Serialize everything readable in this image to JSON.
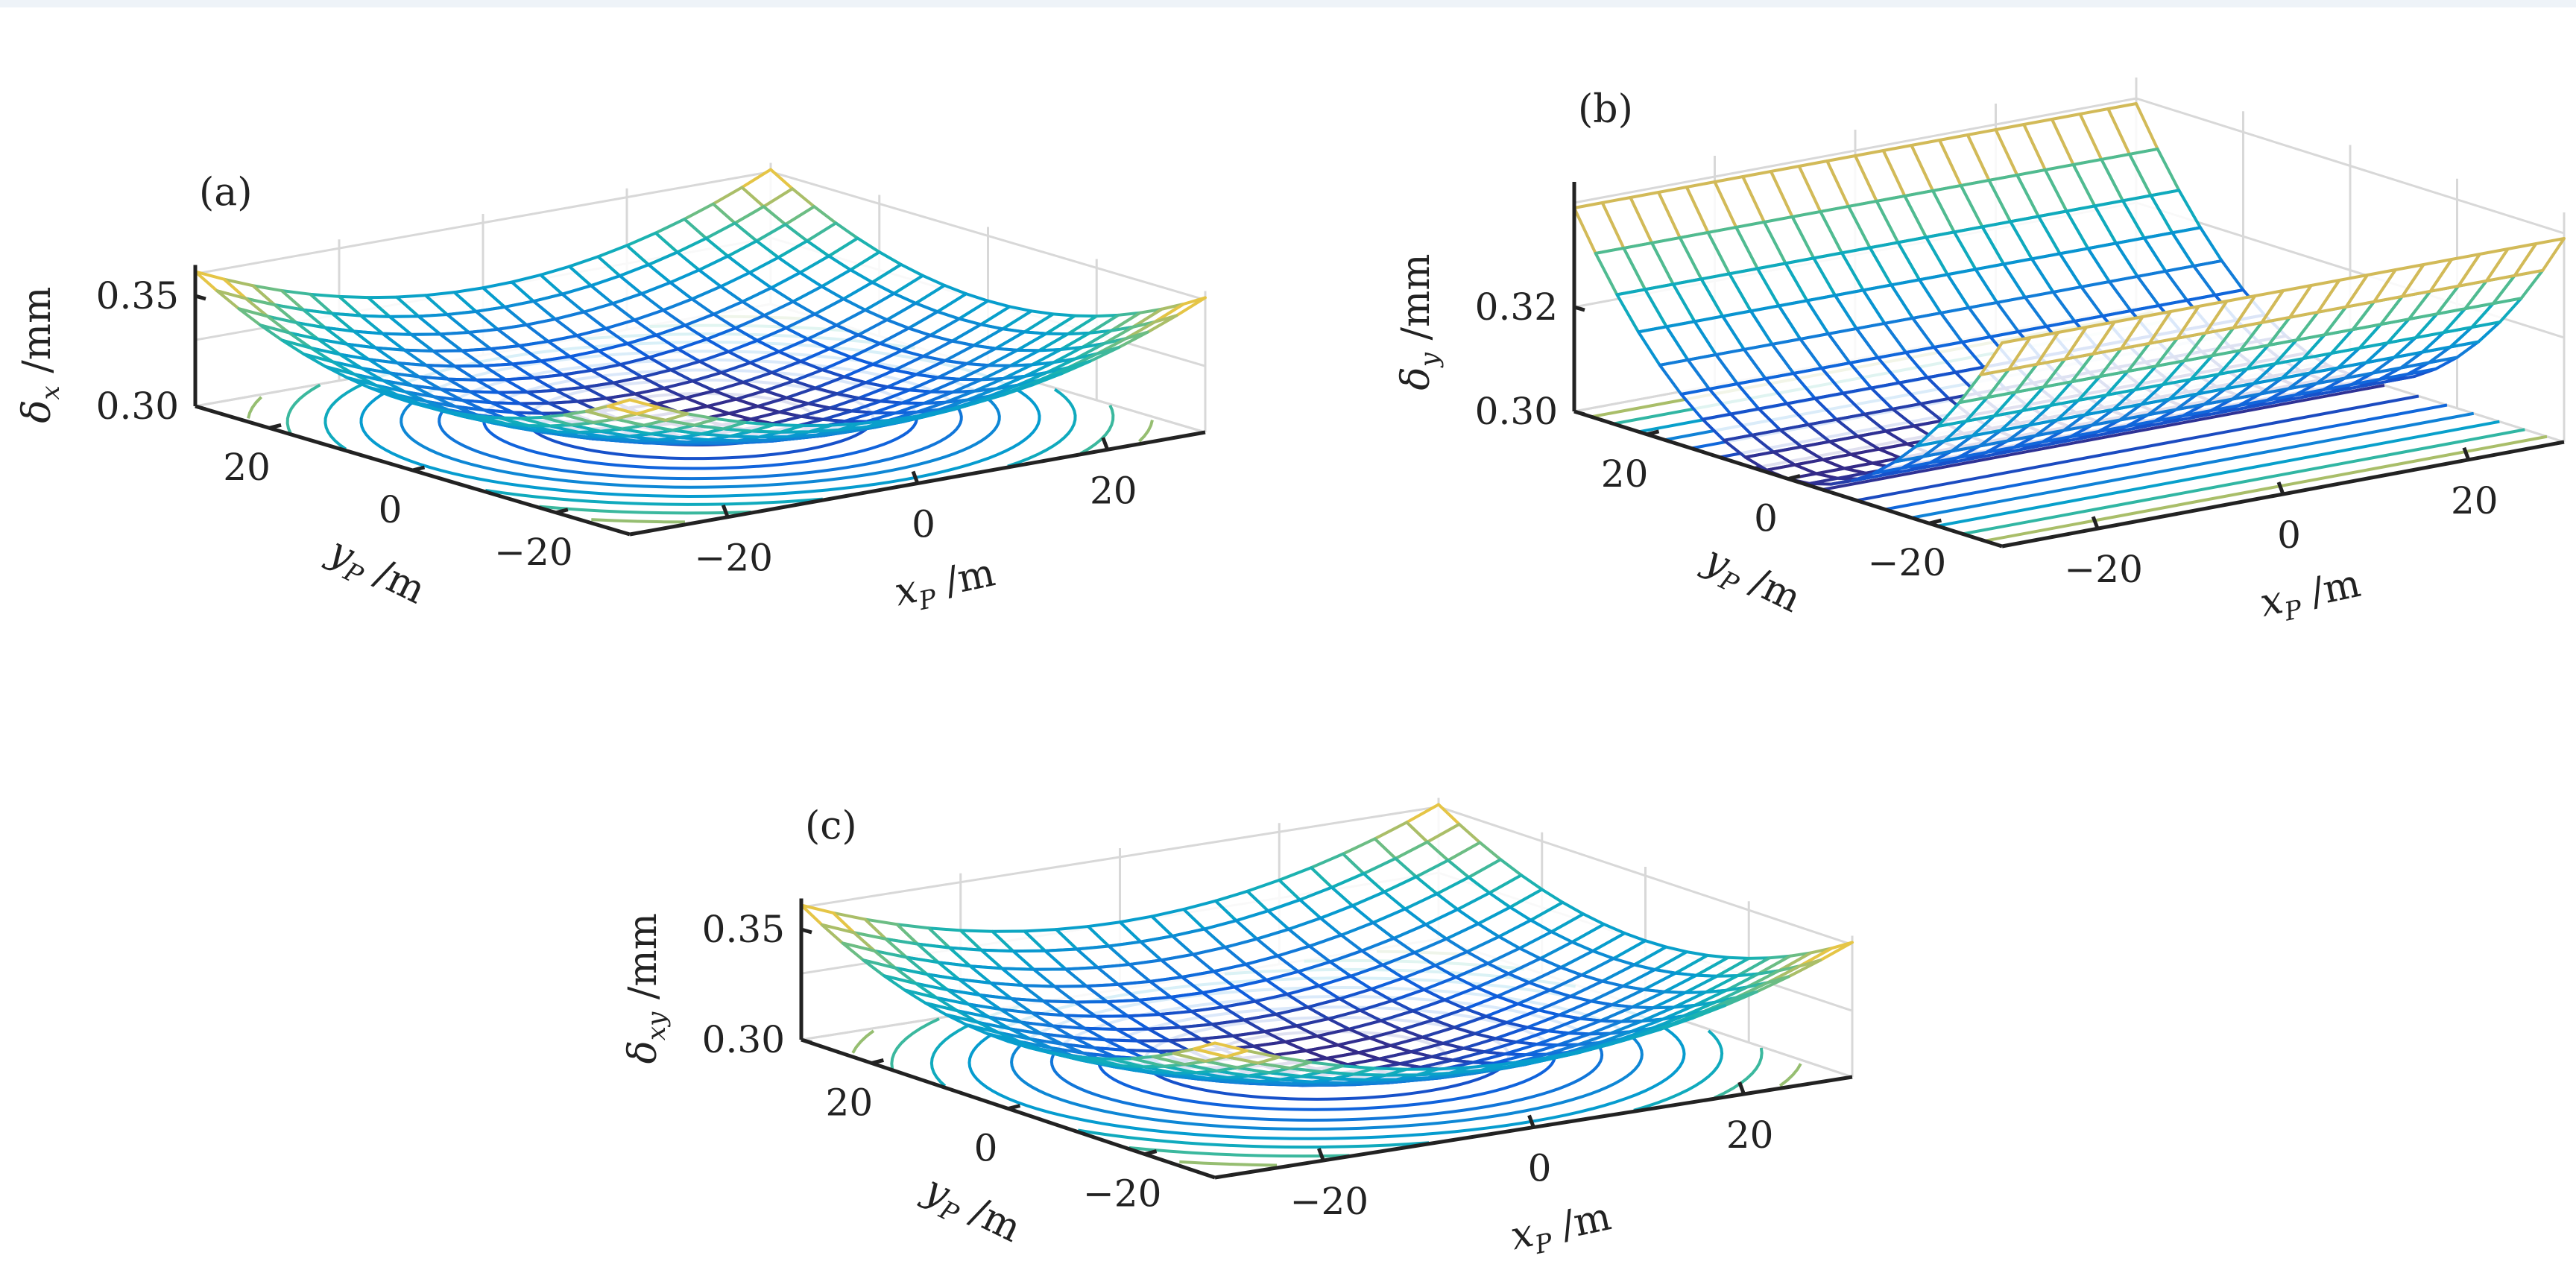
{
  "chart_data": [
    {
      "type": "surface3d",
      "panel_label": "(a)",
      "zlabel": {
        "sym": "δ",
        "sub": "x",
        "unit": " /mm"
      },
      "ylabel": {
        "sym": "y",
        "sub": "P",
        "unit": " /m"
      },
      "xlabel": {
        "sym": "x",
        "sub": "P",
        "unit": " /m"
      },
      "zticks": [
        "0.30",
        "0.35"
      ],
      "yticks": [
        "20",
        "0",
        "−20"
      ],
      "xticks": [
        "−20",
        "0",
        "20"
      ],
      "surface": "paraboloid with minimum near 0.30 mm at (0, 0); rises to about 0.36 mm at the corners",
      "contours": "ellipses projected on the floor"
    },
    {
      "type": "surface3d",
      "panel_label": "(b)",
      "zlabel": {
        "sym": "δ",
        "sub": "y",
        "unit": " /mm"
      },
      "ylabel": {
        "sym": "y",
        "sub": "P",
        "unit": " /m"
      },
      "xlabel": {
        "sym": "x",
        "sub": "P",
        "unit": " /m"
      },
      "zticks": [
        "0.30",
        "0.32"
      ],
      "yticks": [
        "20",
        "0",
        "−20"
      ],
      "xticks": [
        "−20",
        "0",
        "20"
      ],
      "surface": "parabolic trough depending only on y_P; minimum near 0.30 mm at y_P = 0, about 0.34 mm at y_P edges",
      "contours": "straight lines parallel to x_P axis"
    },
    {
      "type": "surface3d",
      "panel_label": "(c)",
      "zlabel": {
        "sym": "δ",
        "sub": "xy",
        "unit": " /mm"
      },
      "ylabel": {
        "sym": "y",
        "sub": "P",
        "unit": " /m"
      },
      "xlabel": {
        "sym": "x",
        "sub": "P",
        "unit": " /m"
      },
      "zticks": [
        "0.30",
        "0.35"
      ],
      "yticks": [
        "20",
        "0",
        "−20"
      ],
      "xticks": [
        "−20",
        "0",
        "20"
      ],
      "surface": "paraboloid with minimum near 0.30 mm at (0, 0); rises to about 0.36 mm at the corners",
      "contours": "ellipses projected on the floor"
    }
  ]
}
